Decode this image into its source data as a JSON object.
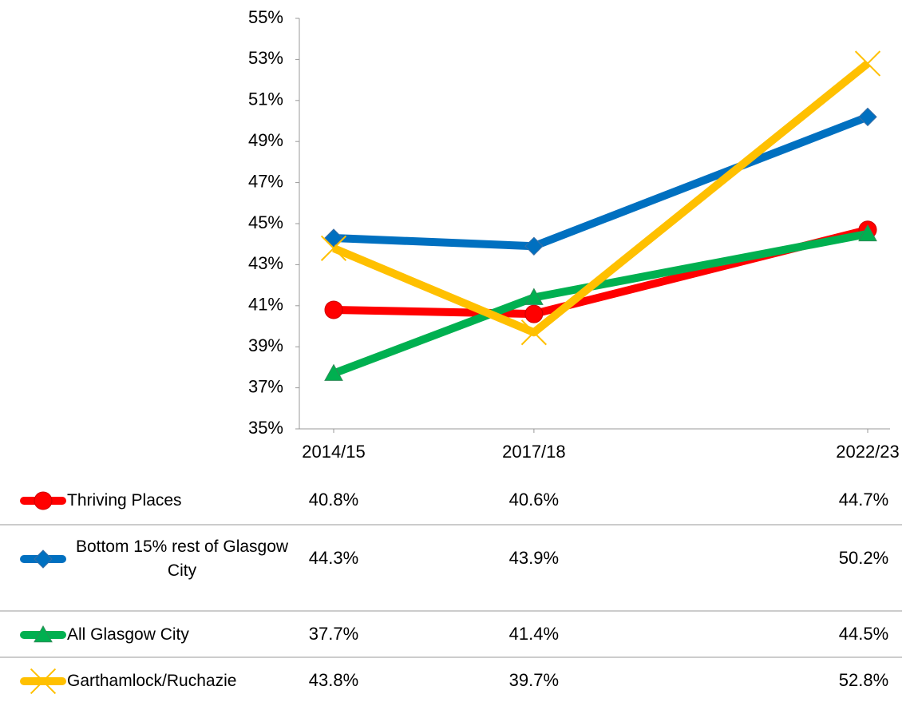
{
  "chart_data": {
    "type": "line",
    "xticks": [
      {
        "value": 2014,
        "label": "2014/15"
      },
      {
        "value": 2017,
        "label": "2017/18"
      },
      {
        "value": 2022,
        "label": "2022/23"
      }
    ],
    "xlim": [
      2014,
      2022
    ],
    "ylim": [
      35,
      55
    ],
    "yticks": [
      {
        "value": 35,
        "label": "35%"
      },
      {
        "value": 37,
        "label": "37%"
      },
      {
        "value": 39,
        "label": "39%"
      },
      {
        "value": 41,
        "label": "41%"
      },
      {
        "value": 43,
        "label": "43%"
      },
      {
        "value": 45,
        "label": "45%"
      },
      {
        "value": 47,
        "label": "47%"
      },
      {
        "value": 49,
        "label": "49%"
      },
      {
        "value": 51,
        "label": "51%"
      },
      {
        "value": 53,
        "label": "53%"
      },
      {
        "value": 55,
        "label": "55%"
      }
    ],
    "grid": false,
    "series": [
      {
        "name": "Thriving Places",
        "color": "#ff0000",
        "marker": "circle",
        "values": [
          40.8,
          40.6,
          44.7
        ],
        "value_labels": [
          "40.8%",
          "40.6%",
          "44.7%"
        ]
      },
      {
        "name": "Bottom 15% rest of Glasgow City",
        "color": "#0070c0",
        "marker": "diamond",
        "values": [
          44.3,
          43.9,
          50.2
        ],
        "value_labels": [
          "44.3%",
          "43.9%",
          "50.2%"
        ]
      },
      {
        "name": "All Glasgow City",
        "color": "#00b050",
        "marker": "triangle",
        "values": [
          37.7,
          41.4,
          44.5
        ],
        "value_labels": [
          "37.7%",
          "41.4%",
          "44.5%"
        ]
      },
      {
        "name": "Garthamlock/Ruchazie",
        "color": "#ffc000",
        "marker": "x",
        "values": [
          43.8,
          39.7,
          52.8
        ],
        "value_labels": [
          "43.8%",
          "39.7%",
          "52.8%"
        ]
      }
    ]
  }
}
